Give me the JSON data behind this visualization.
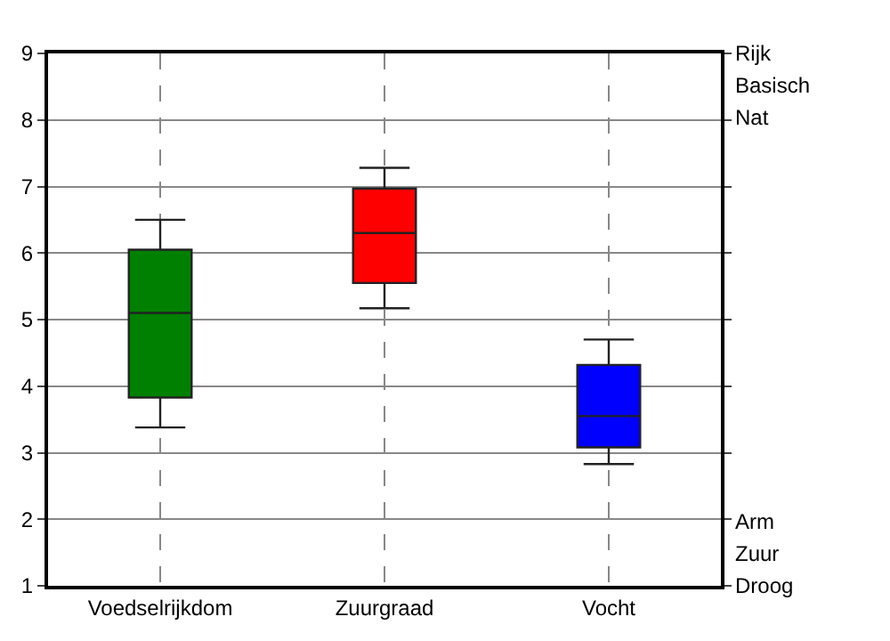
{
  "chart_data": {
    "type": "box",
    "categories": [
      "Voedselrijkdom",
      "Zuurgraad",
      "Vocht"
    ],
    "colors": [
      "#008000",
      "#ff0000",
      "#0000ff"
    ],
    "boxes": [
      {
        "low": 3.38,
        "q1": 3.83,
        "median": 5.1,
        "q3": 6.05,
        "high": 6.5
      },
      {
        "low": 5.17,
        "q1": 5.55,
        "median": 6.3,
        "q3": 6.97,
        "high": 7.28
      },
      {
        "low": 2.83,
        "q1": 3.08,
        "median": 3.55,
        "q3": 4.32,
        "high": 4.7
      }
    ],
    "ylim": [
      1,
      9
    ],
    "yticks": [
      1,
      2,
      3,
      4,
      5,
      6,
      7,
      8,
      9
    ],
    "grid": true,
    "annotations": [
      "Rijk",
      "Basisch",
      "Nat",
      "Arm",
      "Zuur",
      "Droog"
    ]
  }
}
